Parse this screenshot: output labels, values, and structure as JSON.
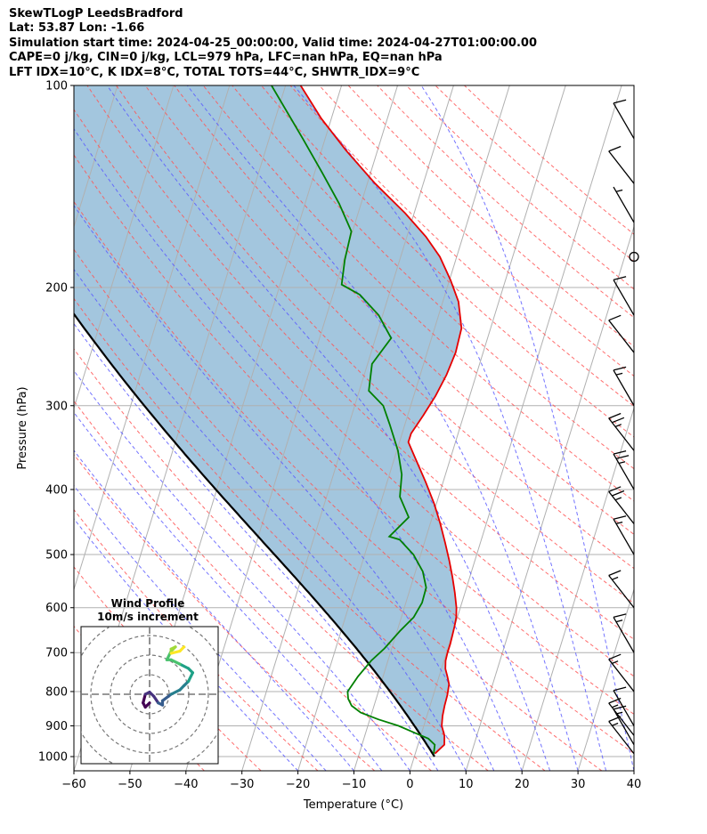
{
  "header": {
    "line1": "SkewTLogP LeedsBradford",
    "line2": "Lat: 53.87   Lon: -1.66",
    "line3": "Simulation start time: 2024-04-25_00:00:00, Valid time: 2024-04-27T01:00:00.00",
    "line4": "CAPE=0 j/kg, CIN=0 j/kg, LCL=979 hPa, LFC=nan hPa, EQ=nan hPa",
    "line5": "LFT IDX=10°C, K IDX=8°C, TOTAL TOTS=44°C, SHWTR_IDX=9°C"
  },
  "chart_data": {
    "type": "skewt-logp",
    "xlabel": "Temperature (°C)",
    "ylabel": "Pressure (hPa)",
    "xlim": [
      -60,
      40
    ],
    "ylim": [
      1050,
      100
    ],
    "x_ticks": [
      -60,
      -50,
      -40,
      -30,
      -20,
      -10,
      0,
      10,
      20,
      30,
      40
    ],
    "y_ticks": [
      100,
      200,
      300,
      400,
      500,
      600,
      700,
      800,
      900,
      1000
    ],
    "skew_deg_per_decade": 37,
    "temperature": [
      [
        990,
        3.5
      ],
      [
        960,
        4.7
      ],
      [
        930,
        4.2
      ],
      [
        900,
        3.2
      ],
      [
        870,
        2.8
      ],
      [
        840,
        2.6
      ],
      [
        810,
        2.5
      ],
      [
        780,
        2.2
      ],
      [
        760,
        1.5
      ],
      [
        740,
        0.7
      ],
      [
        720,
        0.3
      ],
      [
        700,
        0.2
      ],
      [
        680,
        0.2
      ],
      [
        660,
        0.1
      ],
      [
        640,
        0
      ],
      [
        620,
        -0.2
      ],
      [
        600,
        -0.7
      ],
      [
        570,
        -1.8
      ],
      [
        540,
        -3.1
      ],
      [
        510,
        -4.6
      ],
      [
        480,
        -6.3
      ],
      [
        450,
        -8.2
      ],
      [
        420,
        -10.4
      ],
      [
        390,
        -13.1
      ],
      [
        360,
        -16.2
      ],
      [
        340,
        -18.4
      ],
      [
        330,
        -18.4
      ],
      [
        310,
        -17.2
      ],
      [
        290,
        -16.1
      ],
      [
        270,
        -15.3
      ],
      [
        250,
        -14.9
      ],
      [
        230,
        -15.2
      ],
      [
        210,
        -17.2
      ],
      [
        195,
        -19.8
      ],
      [
        180,
        -23
      ],
      [
        168,
        -26.6
      ],
      [
        155,
        -31.6
      ],
      [
        140,
        -38.6
      ],
      [
        125,
        -45.6
      ],
      [
        112,
        -51.8
      ],
      [
        100,
        -57.3
      ]
    ],
    "dewpoint": [
      [
        990,
        3.3
      ],
      [
        960,
        3
      ],
      [
        940,
        1.5
      ],
      [
        920,
        -1.5
      ],
      [
        900,
        -4.5
      ],
      [
        880,
        -8.5
      ],
      [
        860,
        -12
      ],
      [
        840,
        -14
      ],
      [
        820,
        -15
      ],
      [
        800,
        -15.5
      ],
      [
        760,
        -14.5
      ],
      [
        720,
        -13
      ],
      [
        690,
        -11.3
      ],
      [
        650,
        -9.5
      ],
      [
        620,
        -7.8
      ],
      [
        590,
        -7.1
      ],
      [
        560,
        -7.2
      ],
      [
        530,
        -8.7
      ],
      [
        500,
        -11.3
      ],
      [
        475,
        -14.6
      ],
      [
        470,
        -16.6
      ],
      [
        440,
        -14.2
      ],
      [
        410,
        -16.9
      ],
      [
        380,
        -17.8
      ],
      [
        350,
        -19.8
      ],
      [
        320,
        -22.7
      ],
      [
        300,
        -24.9
      ],
      [
        285,
        -28.3
      ],
      [
        260,
        -29.2
      ],
      [
        238,
        -27.2
      ],
      [
        220,
        -30.7
      ],
      [
        205,
        -35.2
      ],
      [
        198,
        -39
      ],
      [
        182,
        -39.8
      ],
      [
        165,
        -40.2
      ],
      [
        150,
        -43.9
      ],
      [
        135,
        -48.6
      ],
      [
        120,
        -54
      ],
      [
        100,
        -62.5
      ]
    ],
    "parcel_start": [
      1000,
      3.6
    ],
    "wind_barbs": [
      {
        "p": 990,
        "speed_kt": 15
      },
      {
        "p": 960,
        "speed_kt": 15
      },
      {
        "p": 930,
        "speed_kt": 15
      },
      {
        "p": 900,
        "speed_kt": 10
      },
      {
        "p": 800,
        "speed_kt": 15
      },
      {
        "p": 700,
        "speed_kt": 15
      },
      {
        "p": 600,
        "speed_kt": 15
      },
      {
        "p": 500,
        "speed_kt": 15
      },
      {
        "p": 450,
        "speed_kt": 25
      },
      {
        "p": 400,
        "speed_kt": 25
      },
      {
        "p": 350,
        "speed_kt": 25
      },
      {
        "p": 300,
        "speed_kt": 15
      },
      {
        "p": 250,
        "speed_kt": 10
      },
      {
        "p": 220,
        "speed_kt": 10
      },
      {
        "p": 180,
        "speed_kt": 0
      },
      {
        "p": 160,
        "speed_kt": 5
      },
      {
        "p": 140,
        "speed_kt": 10
      },
      {
        "p": 120,
        "speed_kt": 10
      }
    ],
    "hodograph": {
      "title": "Wind Profile",
      "subtitle": "10m/s increment",
      "ring_step_ms": 10,
      "points_uv": [
        [
          0,
          -2
        ],
        [
          -1,
          -3
        ],
        [
          -1.5,
          -2
        ],
        [
          -1,
          0
        ],
        [
          0,
          0.5
        ],
        [
          1,
          -0.5
        ],
        [
          2,
          -2
        ],
        [
          3,
          -2.5
        ],
        [
          3,
          -1.5
        ],
        [
          5,
          0
        ],
        [
          7,
          1
        ],
        [
          8,
          2
        ],
        [
          9,
          3
        ],
        [
          10,
          5
        ],
        [
          9,
          6
        ],
        [
          7,
          7
        ],
        [
          5,
          8
        ],
        [
          4,
          8
        ],
        [
          5,
          10
        ],
        [
          6,
          11
        ],
        [
          5,
          10.5
        ],
        [
          5,
          9.5
        ],
        [
          7,
          10
        ],
        [
          8,
          11
        ]
      ]
    }
  }
}
